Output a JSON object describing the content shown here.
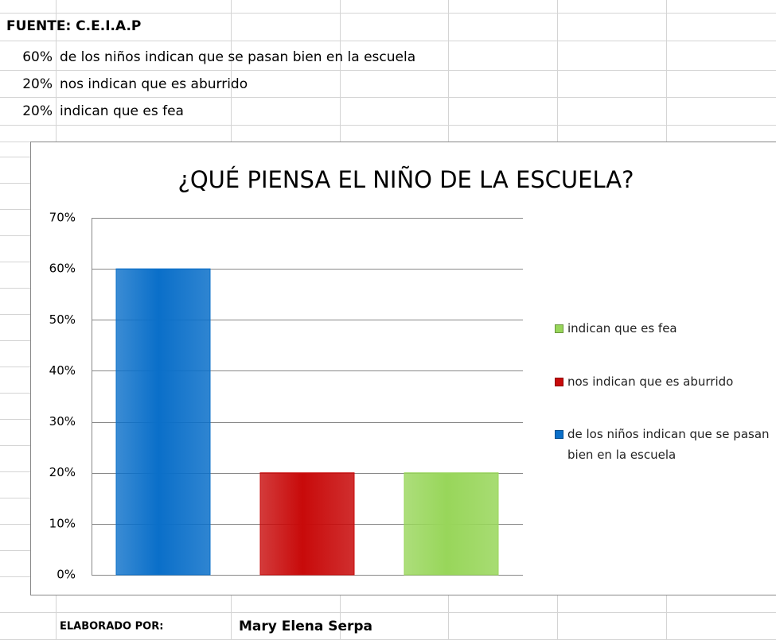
{
  "sheet": {
    "source": "FUENTE: C.E.I.A.P",
    "rows": [
      {
        "pct": "60%",
        "text": "de los niños indican que se pasan bien en la escuela"
      },
      {
        "pct": "20%",
        "text": "nos indican que es aburrido"
      },
      {
        "pct": "20%",
        "text": "indican que es fea"
      }
    ],
    "footer_label": "ELABORADO POR:",
    "footer_name": "Mary Elena Serpa"
  },
  "chart_data": {
    "type": "bar",
    "title": "¿QUÉ PIENSA EL NIÑO DE LA ESCUELA?",
    "categories": [
      null
    ],
    "series": [
      {
        "name": "de los niños indican que se pasan bien en la escuela",
        "color": "#0a6fc9",
        "values": [
          60
        ]
      },
      {
        "name": "nos indican que es aburrido",
        "color": "#c80a0a",
        "values": [
          20
        ]
      },
      {
        "name": "indican que es fea",
        "color": "#98d65a",
        "values": [
          20
        ]
      }
    ],
    "ylim": [
      0,
      70
    ],
    "yticks": [
      {
        "value": 0,
        "label": "0%"
      },
      {
        "value": 10,
        "label": "10%"
      },
      {
        "value": 20,
        "label": "20%"
      },
      {
        "value": 30,
        "label": "30%"
      },
      {
        "value": 40,
        "label": "40%"
      },
      {
        "value": 50,
        "label": "50%"
      },
      {
        "value": 60,
        "label": "60%"
      },
      {
        "value": 70,
        "label": "70%"
      }
    ],
    "grid": true,
    "legend": "right"
  }
}
